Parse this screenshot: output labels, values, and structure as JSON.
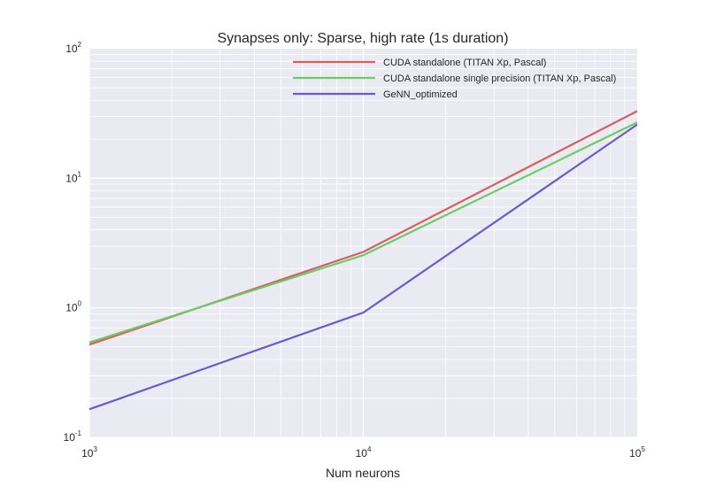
{
  "chart_data": {
    "type": "line",
    "title": "Synapses only: Sparse, high rate (1s duration)",
    "xlabel": "Num neurons",
    "ylabel": "",
    "x_scale": "log",
    "y_scale": "log",
    "xlim": [
      1000,
      100000
    ],
    "ylim": [
      0.1,
      100
    ],
    "x_ticks": [
      {
        "value": 1000,
        "base": "10",
        "exp": "3"
      },
      {
        "value": 10000,
        "base": "10",
        "exp": "4"
      },
      {
        "value": 100000,
        "base": "10",
        "exp": "5"
      }
    ],
    "y_ticks": [
      {
        "value": 0.1,
        "base": "10",
        "exp": "-1"
      },
      {
        "value": 1,
        "base": "10",
        "exp": "0"
      },
      {
        "value": 10,
        "base": "10",
        "exp": "1"
      },
      {
        "value": 100,
        "base": "10",
        "exp": "2"
      }
    ],
    "grid": true,
    "legend_position": "top-right",
    "background_color": "#EAEAF2",
    "series": [
      {
        "name": "CUDA standalone (TITAN Xp, Pascal)",
        "color": "#D65F5F",
        "x": [
          1000,
          10000,
          100000
        ],
        "y": [
          0.52,
          2.7,
          33
        ]
      },
      {
        "name": "CUDA standalone single precision (TITAN Xp, Pascal)",
        "color": "#6ACC65",
        "x": [
          1000,
          10000,
          100000
        ],
        "y": [
          0.54,
          2.55,
          27
        ]
      },
      {
        "name": "GeNN_optimized",
        "color": "#6A5ACD",
        "x": [
          1000,
          10000,
          100000
        ],
        "y": [
          0.165,
          0.92,
          26
        ]
      }
    ]
  }
}
